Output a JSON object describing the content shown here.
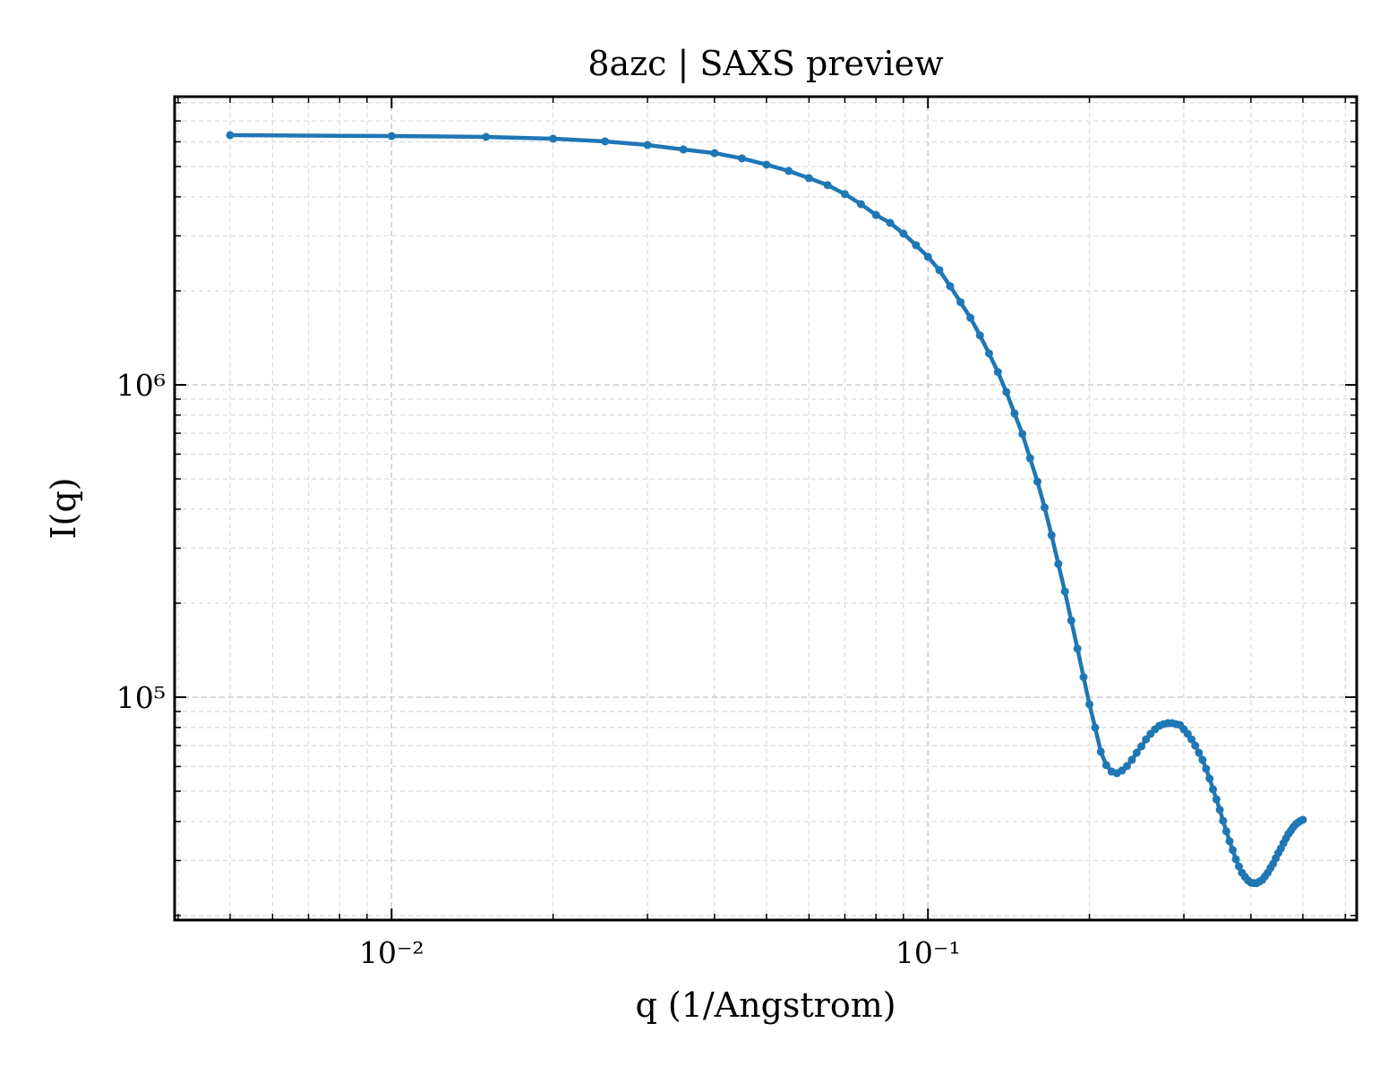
{
  "chart_data": {
    "type": "line",
    "title": "8azc | SAXS preview",
    "xlabel": "q (1/Angstrom)",
    "ylabel": "I(q)",
    "xscale": "log",
    "yscale": "log",
    "grid": true,
    "color": "#1f77b4",
    "xlim": [
      0.00394,
      0.63
    ],
    "ylim": [
      19340,
      8370000
    ],
    "xticks": [
      {
        "value": 0.01,
        "label": "10⁻²"
      },
      {
        "value": 0.1,
        "label": "10⁻¹"
      }
    ],
    "yticks": [
      {
        "value": 100000,
        "label": "10⁵"
      },
      {
        "value": 1000000,
        "label": "10⁶"
      }
    ],
    "xminorticks": [
      0.004,
      0.005,
      0.006,
      0.007,
      0.008,
      0.009,
      0.02,
      0.03,
      0.04,
      0.05,
      0.06,
      0.07,
      0.08,
      0.09,
      0.2,
      0.3,
      0.4,
      0.5,
      0.6
    ],
    "yminorticks": [
      20000,
      30000,
      40000,
      50000,
      60000,
      70000,
      80000,
      90000,
      200000,
      300000,
      400000,
      500000,
      600000,
      700000,
      800000,
      900000,
      2000000,
      3000000,
      4000000,
      5000000,
      6000000,
      7000000,
      8000000
    ],
    "x": [
      0.005,
      0.01,
      0.015,
      0.02,
      0.025,
      0.03,
      0.035,
      0.04,
      0.045,
      0.05,
      0.055,
      0.06,
      0.065,
      0.07,
      0.075,
      0.08,
      0.085,
      0.09,
      0.095,
      0.1,
      0.105,
      0.11,
      0.115,
      0.12,
      0.125,
      0.13,
      0.135,
      0.14,
      0.145,
      0.15,
      0.155,
      0.16,
      0.165,
      0.17,
      0.175,
      0.18,
      0.185,
      0.19,
      0.195,
      0.2,
      0.205,
      0.21,
      0.215,
      0.22,
      0.225,
      0.23,
      0.235,
      0.24,
      0.245,
      0.25,
      0.255,
      0.26,
      0.265,
      0.27,
      0.275,
      0.28,
      0.285,
      0.29,
      0.295,
      0.3,
      0.305,
      0.31,
      0.315,
      0.32,
      0.325,
      0.33,
      0.335,
      0.34,
      0.345,
      0.35,
      0.355,
      0.36,
      0.365,
      0.37,
      0.375,
      0.38,
      0.385,
      0.39,
      0.395,
      0.4,
      0.405,
      0.41,
      0.415,
      0.42,
      0.425,
      0.43,
      0.435,
      0.44,
      0.445,
      0.45,
      0.455,
      0.46,
      0.465,
      0.47,
      0.475,
      0.48,
      0.485,
      0.49,
      0.495,
      0.5
    ],
    "values": [
      6300000,
      6260000,
      6220000,
      6140000,
      6020000,
      5860000,
      5670000,
      5520000,
      5310000,
      5070000,
      4840000,
      4590000,
      4360000,
      4080000,
      3790000,
      3500000,
      3300000,
      3050000,
      2800000,
      2570000,
      2330000,
      2070000,
      1840000,
      1640000,
      1440000,
      1260000,
      1100000,
      949000,
      810000,
      696000,
      582000,
      490000,
      405000,
      330000,
      267000,
      218000,
      176000,
      143000,
      116000,
      94900,
      79900,
      66900,
      60600,
      57800,
      57100,
      58200,
      60200,
      63000,
      66400,
      69600,
      73300,
      76300,
      78900,
      81000,
      82000,
      82600,
      82600,
      82000,
      81500,
      78900,
      76300,
      73300,
      70000,
      66400,
      63000,
      59000,
      54900,
      50700,
      47100,
      43600,
      40200,
      37200,
      34600,
      32400,
      30300,
      28700,
      27400,
      26600,
      25900,
      25500,
      25400,
      25400,
      25700,
      26000,
      26700,
      27400,
      28400,
      29300,
      30500,
      31700,
      32800,
      34100,
      35300,
      36500,
      37400,
      38400,
      39200,
      39700,
      40200,
      40500
    ]
  }
}
